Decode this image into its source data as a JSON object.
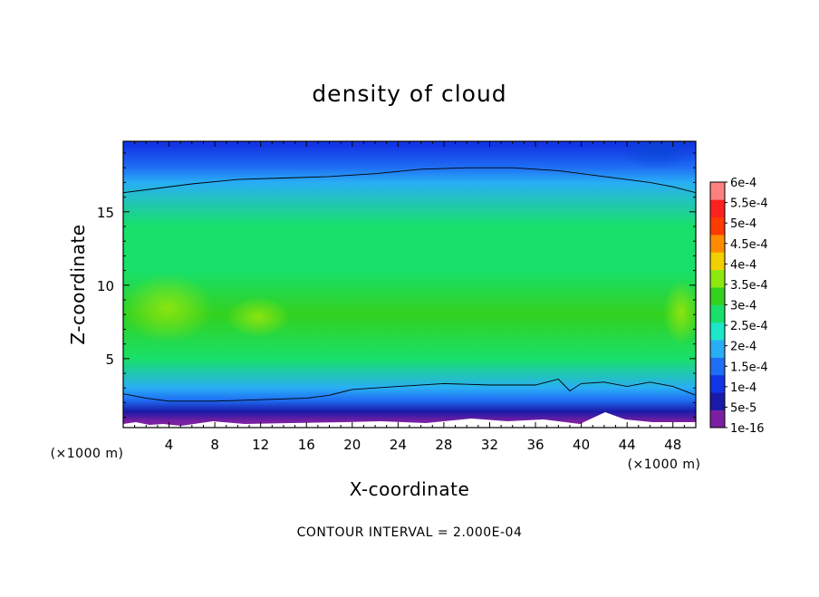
{
  "chart_data": {
    "type": "heatmap",
    "title": "density of cloud",
    "xlabel": "X-coordinate",
    "ylabel": "Z-coordinate",
    "x_unit_label": "(×1000 m)",
    "x_unit_label_secondary": "(×1000 m)",
    "footer": "CONTOUR INTERVAL = 2.000E-04",
    "xlim": [
      0,
      50
    ],
    "ylim": [
      0.3,
      19.8
    ],
    "x_ticks": [
      4,
      8,
      12,
      16,
      20,
      24,
      28,
      32,
      36,
      40,
      44,
      48
    ],
    "x_tick_labels": [
      "4",
      "8",
      "12",
      "16",
      "20",
      "24",
      "28",
      "32",
      "36",
      "40",
      "44",
      "48"
    ],
    "y_ticks": [
      5,
      10,
      15
    ],
    "y_tick_labels": [
      "5",
      "10",
      "15"
    ],
    "colorbar": {
      "levels": [
        "1e-16",
        "5e-5",
        "1e-4",
        "1.5e-4",
        "2e-4",
        "2.5e-4",
        "3e-4",
        "3.5e-4",
        "4e-4",
        "4.5e-4",
        "5e-4",
        "5.5e-4",
        "6e-4"
      ],
      "colors": [
        "#7b1fa2",
        "#1a1aa8",
        "#1236e6",
        "#1f6ff4",
        "#29aef5",
        "#1de6c9",
        "#18e06a",
        "#33d11f",
        "#8de80f",
        "#f2d000",
        "#ff8c00",
        "#ff3a00",
        "#ff2020",
        "#ff8080"
      ]
    },
    "field_description_rows": [
      {
        "z": 19.5,
        "value": 0.00013
      },
      {
        "z": 18.0,
        "value": 0.00019
      },
      {
        "z": 17.0,
        "value": 0.00022
      },
      {
        "z": 14.0,
        "value": 0.00032
      },
      {
        "z": 11.0,
        "value": 0.00034
      },
      {
        "z": 8.0,
        "value": 0.00038
      },
      {
        "z": 5.0,
        "value": 0.00031
      },
      {
        "z": 3.0,
        "value": 0.00023
      },
      {
        "z": 2.2,
        "value": 0.00015
      },
      {
        "z": 1.4,
        "value": 6e-05
      },
      {
        "z": 0.7,
        "value": 1e-16
      }
    ],
    "contour_lines": [
      {
        "level": 0.0002,
        "x": [
          0,
          2,
          6,
          10,
          14,
          18,
          22,
          26,
          30,
          34,
          38,
          42,
          46,
          48,
          50
        ],
        "z": [
          16.3,
          16.5,
          16.9,
          17.2,
          17.3,
          17.4,
          17.6,
          17.9,
          18.0,
          18.0,
          17.8,
          17.4,
          17.0,
          16.7,
          16.3
        ]
      },
      {
        "level": 0.0002,
        "x": [
          0,
          2,
          4,
          8,
          12,
          16,
          18,
          20,
          24,
          28,
          32,
          36,
          38,
          39,
          40,
          42,
          44,
          46,
          48,
          50
        ],
        "z": [
          2.6,
          2.3,
          2.1,
          2.1,
          2.2,
          2.3,
          2.5,
          2.9,
          3.1,
          3.3,
          3.2,
          3.2,
          3.6,
          2.8,
          3.3,
          3.4,
          3.1,
          3.4,
          3.1,
          2.5
        ]
      }
    ]
  }
}
